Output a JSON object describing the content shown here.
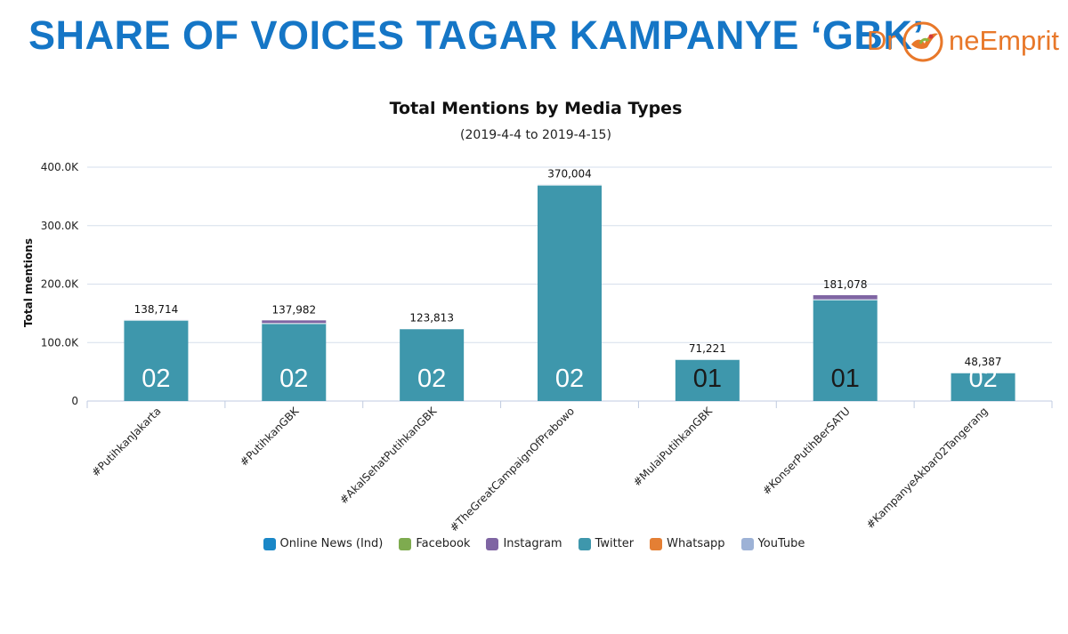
{
  "header": {
    "title": "SHARE OF VOICES TAGAR KAMPANYE ‘GBK’",
    "logo_left": "Dr",
    "logo_right": "neEmprit"
  },
  "colors": {
    "title": "#1576c6",
    "logo": "#e8782a",
    "grid": "#d6dfec",
    "axis": "#c0cbe0"
  },
  "chart_data": {
    "type": "bar",
    "stacked": true,
    "title": "Total Mentions by Media Types",
    "subtitle": "(2019-4-4 to 2019-4-15)",
    "xlabel": "",
    "ylabel": "Total mentions",
    "ylim": [
      0,
      400000
    ],
    "yticks": [
      0,
      100000,
      200000,
      300000,
      400000
    ],
    "ytick_labels": [
      "0",
      "100.0K",
      "200.0K",
      "300.0K",
      "400.0K"
    ],
    "grid": true,
    "legend_position": "bottom-center",
    "categories": [
      "#PutihkanJakarta",
      "#PutihkanGBK",
      "#AkalSehatPutihkanGBK",
      "#TheGreatCampaignOfPrabowo",
      "#MulaiPutihkanGBK",
      "#KonserPutihBerSATU",
      "#KampanyeAkbar02Tangerang"
    ],
    "totals": [
      138714,
      137982,
      123813,
      370004,
      71221,
      181078,
      48387
    ],
    "total_labels": [
      "138,714",
      "137,982",
      "123,813",
      "370,004",
      "71,221",
      "181,078",
      "48,387"
    ],
    "overlays": [
      "02",
      "02",
      "02",
      "02",
      "01",
      "01",
      "02"
    ],
    "overlay_colors": [
      "#ffffff",
      "#ffffff",
      "#ffffff",
      "#ffffff",
      "#1a1a1a",
      "#1a1a1a",
      "#ffffff"
    ],
    "series": [
      {
        "name": "Online News (Ind)",
        "color": "#1a87c7",
        "values": [
          0,
          0,
          0,
          0,
          0,
          0,
          0
        ]
      },
      {
        "name": "Facebook",
        "color": "#7eab4f",
        "values": [
          0,
          0,
          0,
          0,
          0,
          0,
          0
        ]
      },
      {
        "name": "Instagram",
        "color": "#7f65a3",
        "values": [
          500,
          5500,
          300,
          600,
          200,
          7800,
          100
        ]
      },
      {
        "name": "Twitter",
        "color": "#3e97ac",
        "values": [
          138214,
          132482,
          123513,
          369404,
          71021,
          173278,
          48287
        ]
      },
      {
        "name": "Whatsapp",
        "color": "#e47f34",
        "values": [
          0,
          0,
          0,
          0,
          0,
          0,
          0
        ]
      },
      {
        "name": "YouTube",
        "color": "#9db2d6",
        "values": [
          0,
          0,
          0,
          0,
          0,
          0,
          0
        ]
      }
    ]
  }
}
